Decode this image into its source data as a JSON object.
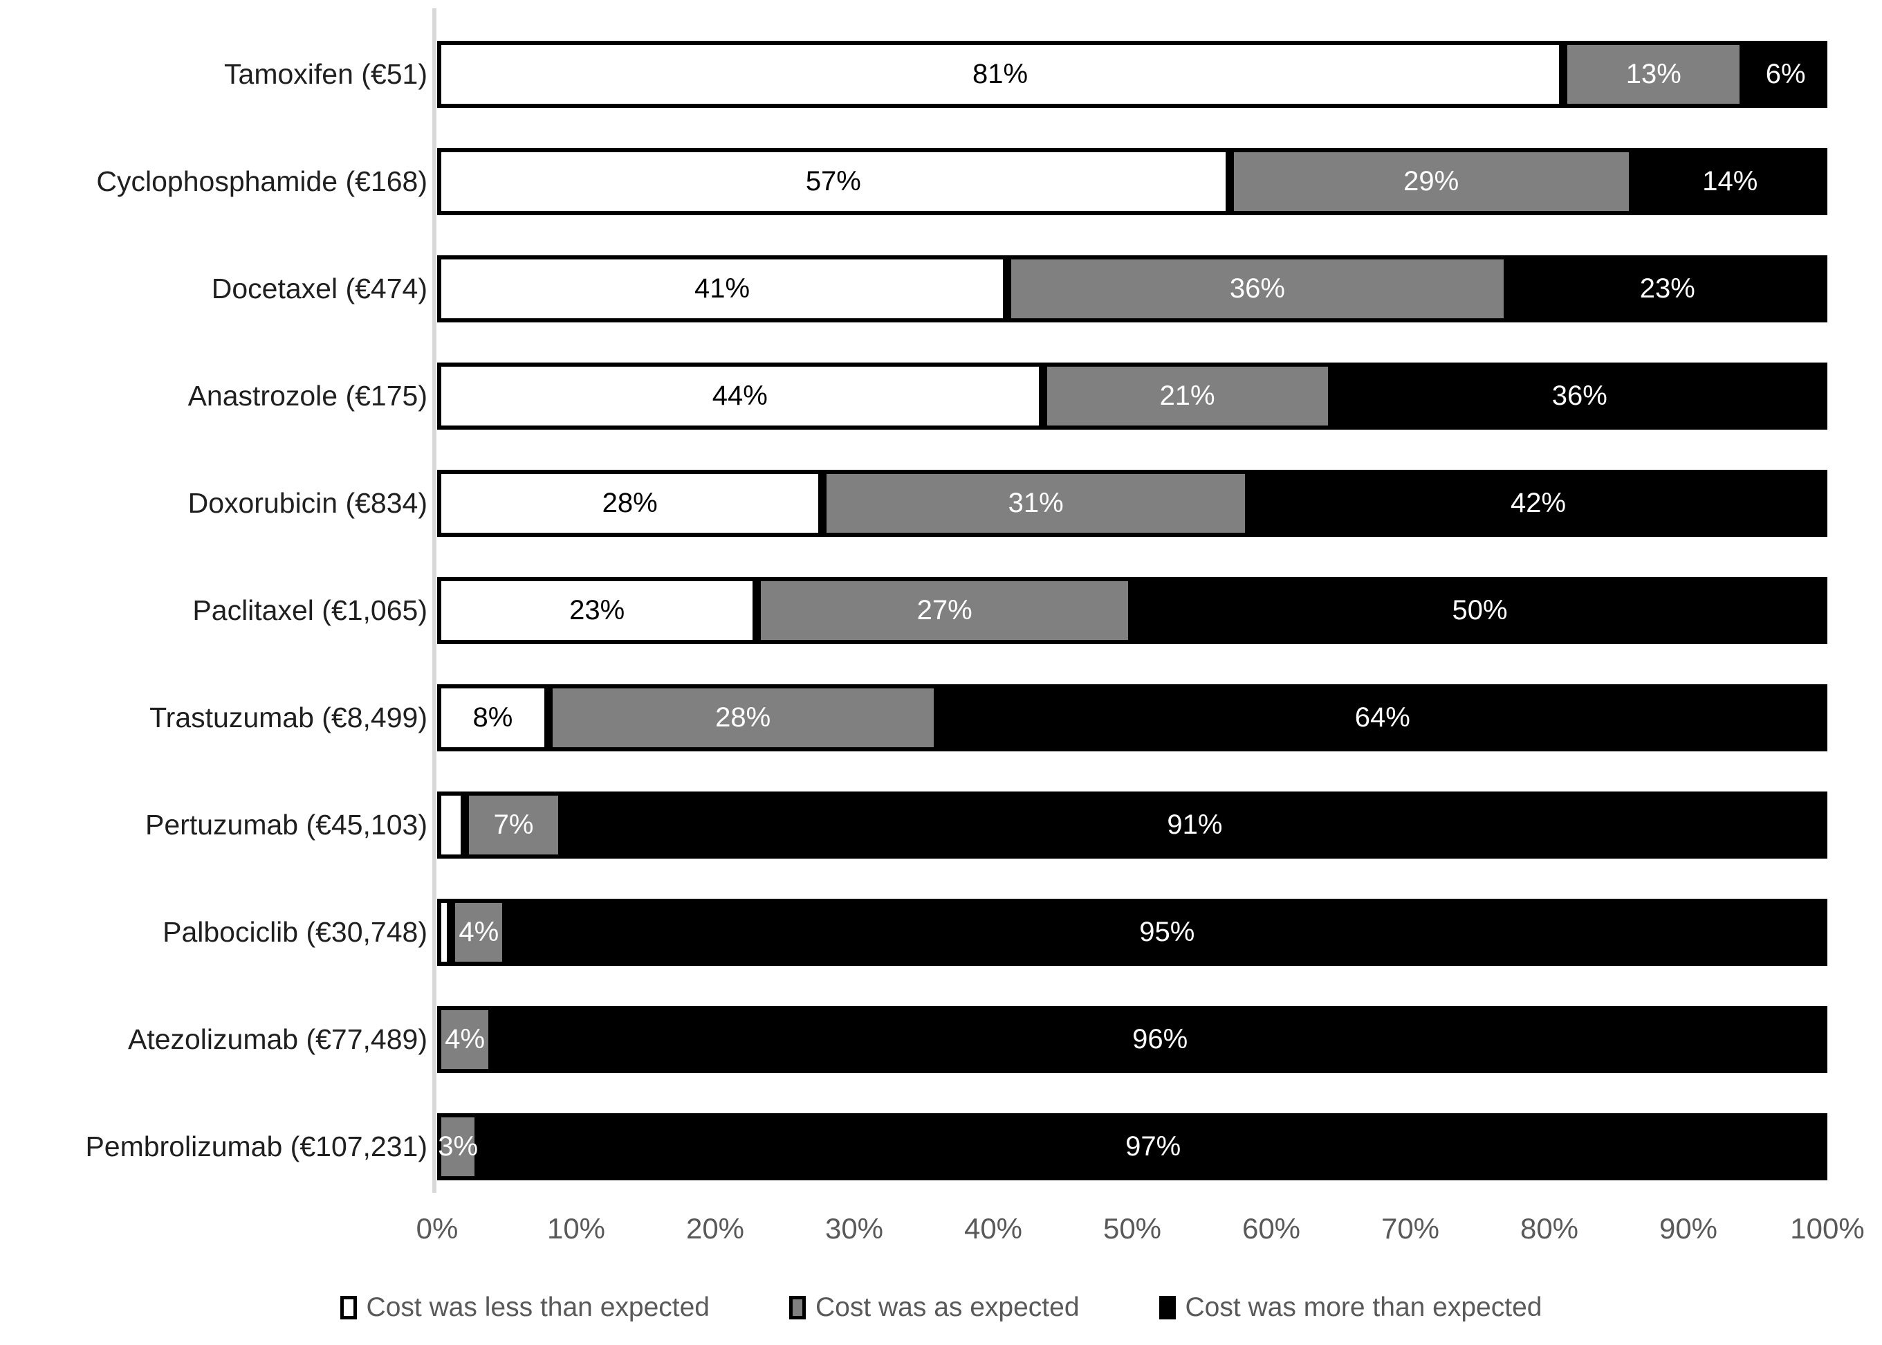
{
  "chart_data": {
    "type": "bar",
    "orientation": "horizontal-stacked",
    "title": "",
    "xlabel": "",
    "ylabel": "",
    "xlim": [
      0,
      100
    ],
    "grid": false,
    "legend_position": "bottom",
    "x_ticks": [
      "0%",
      "10%",
      "20%",
      "30%",
      "40%",
      "50%",
      "60%",
      "70%",
      "80%",
      "90%",
      "100%"
    ],
    "categories": [
      "Tamoxifen (€51)",
      "Cyclophosphamide (€168)",
      "Docetaxel (€474)",
      "Anastrozole (€175)",
      "Doxorubicin (€834)",
      "Paclitaxel (€1,065)",
      "Trastuzumab (€8,499)",
      "Pertuzumab (€45,103)",
      "Palbociclib (€30,748)",
      "Atezolizumab (€77,489)",
      "Pembrolizumab (€107,231)"
    ],
    "series": [
      {
        "name": "Cost was less than expected",
        "color": "#ffffff",
        "text_color": "#000000",
        "values": [
          81,
          57,
          41,
          44,
          28,
          23,
          8,
          2,
          1,
          0,
          0
        ],
        "labels": [
          "81%",
          "57%",
          "41%",
          "44%",
          "28%",
          "23%",
          "8%",
          "",
          "",
          "",
          ""
        ]
      },
      {
        "name": "Cost was as expected",
        "color": "#808080",
        "text_color": "#ffffff",
        "values": [
          13,
          29,
          36,
          21,
          31,
          27,
          28,
          7,
          4,
          4,
          3
        ],
        "labels": [
          "13%",
          "29%",
          "36%",
          "21%",
          "31%",
          "27%",
          "28%",
          "7%",
          "4%",
          "4%",
          "3%"
        ]
      },
      {
        "name": "Cost was more than expected",
        "color": "#000000",
        "text_color": "#ffffff",
        "values": [
          6,
          14,
          23,
          36,
          42,
          50,
          64,
          91,
          95,
          96,
          97
        ],
        "labels": [
          "6%",
          "14%",
          "23%",
          "36%",
          "42%",
          "50%",
          "64%",
          "91%",
          "95%",
          "96%",
          "97%"
        ]
      }
    ],
    "colors": {
      "axis_line": "#d9d9d9",
      "tick_text": "#595959",
      "legend_text": "#595959",
      "category_text": "#1f1f1f"
    }
  }
}
